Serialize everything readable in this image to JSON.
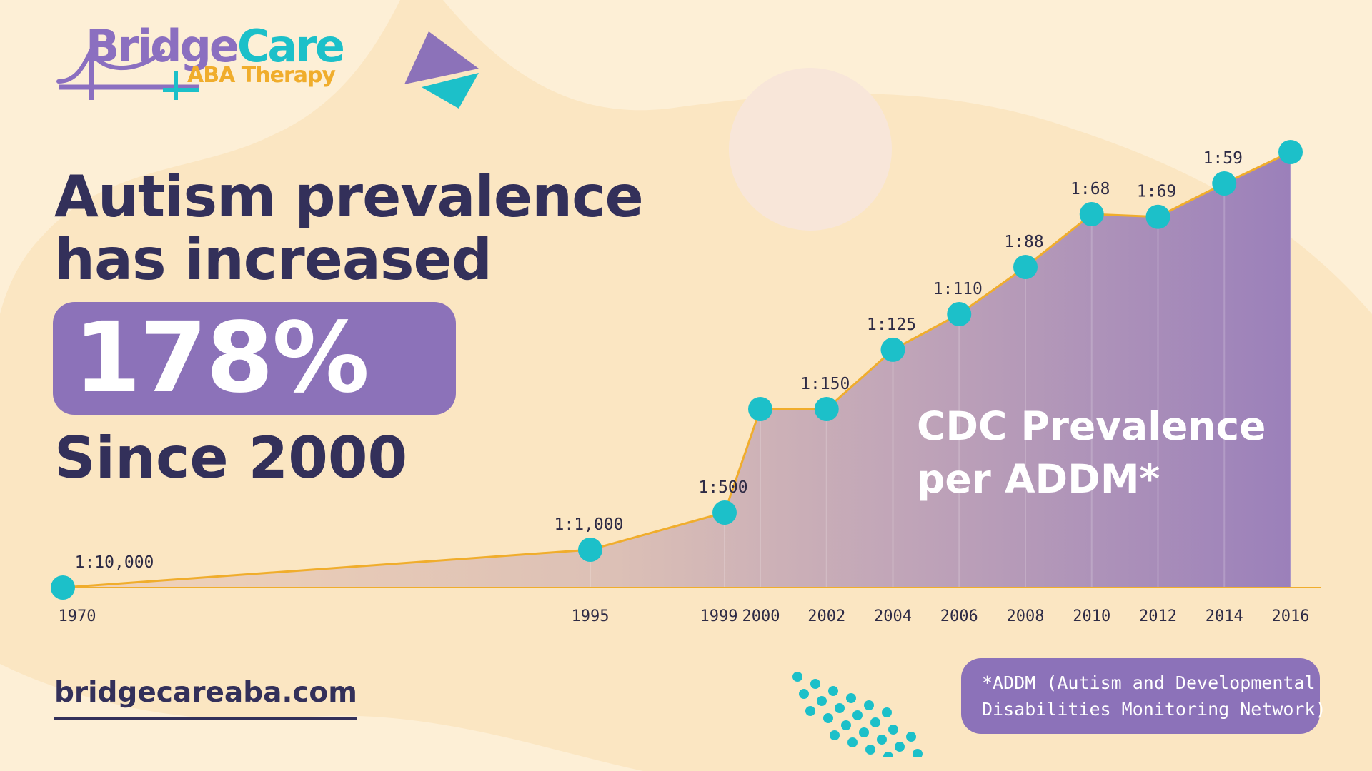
{
  "brand": {
    "name_part1": "Bridge",
    "name_part2": "Care",
    "subtitle": "ABA Therapy"
  },
  "headline": {
    "line1": "Autism prevalence",
    "line2": "has increased",
    "stat": "178%",
    "since": "Since 2000"
  },
  "cdc_label": {
    "line1": "CDC Prevalence",
    "line2": "per ADDM*"
  },
  "website": "bridgecareaba.com",
  "footnote": {
    "line1": "*ADDM (Autism and Developmental",
    "line2": "Disabilities Monitoring Network)"
  },
  "colors": {
    "background": "#fbe6c2",
    "purple": "#8c72b9",
    "teal": "#1cc0c9",
    "orange": "#f0ad2c",
    "navy": "#33305a"
  },
  "chart_data": {
    "type": "area",
    "title": "",
    "xlabel": "",
    "ylabel": "",
    "x": [
      1970,
      1995,
      1999,
      2000,
      2002,
      2004,
      2006,
      2008,
      2010,
      2012,
      2014,
      2016
    ],
    "series": [
      {
        "labels": [
          "1:10,000",
          "1:1,000",
          "1:500",
          "",
          "1:150",
          "1:125",
          "1:110",
          "1:88",
          "1:68",
          "1:69",
          "1:59",
          ""
        ],
        "values": [
          "1:10,000",
          "1:1,000",
          "1:500",
          "1:150",
          "1:150",
          "1:125",
          "1:110",
          "1:88",
          "1:68",
          "1:69",
          "1:59",
          "1:54"
        ]
      }
    ],
    "grid": false,
    "legend": "none"
  }
}
